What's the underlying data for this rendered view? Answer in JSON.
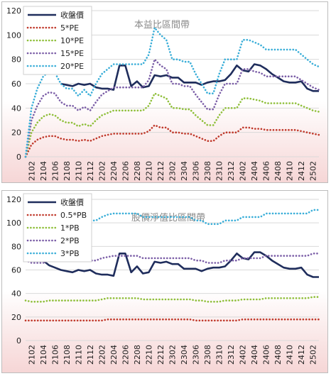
{
  "chart_data": [
    {
      "type": "line",
      "title": "本益比區間帶",
      "ylim": [
        0,
        120
      ],
      "yticks": [
        0,
        20,
        40,
        60,
        80,
        100,
        120
      ],
      "grid": true,
      "legend": "top-left",
      "x": [
        "2101",
        "2102",
        "2103",
        "2104",
        "2105",
        "2106",
        "2107",
        "2108",
        "2109",
        "2110",
        "2111",
        "2112",
        "2201",
        "2202",
        "2203",
        "2204",
        "2205",
        "2206",
        "2207",
        "2208",
        "2209",
        "2210",
        "2211",
        "2212",
        "2301",
        "2302",
        "2303",
        "2304",
        "2305",
        "2306",
        "2307",
        "2308",
        "2309",
        "2310",
        "2311",
        "2312",
        "2401",
        "2402",
        "2403",
        "2404",
        "2405",
        "2406",
        "2407",
        "2408",
        "2409",
        "2410",
        "2411",
        "2412",
        "2501",
        "2502",
        "2503"
      ],
      "xtick_labels": [
        "2102",
        "2104",
        "2106",
        "2108",
        "2110",
        "2112",
        "2202",
        "2204",
        "2206",
        "2208",
        "2210",
        "2212",
        "2302",
        "2304",
        "2306",
        "2308",
        "2310",
        "2312",
        "2402",
        "2404",
        "2406",
        "2408",
        "2410",
        "2412",
        "2502"
      ],
      "series": [
        {
          "name": "收盤價",
          "color": "#1f2d5c",
          "style": "solid",
          "values": [
            null,
            null,
            null,
            null,
            null,
            null,
            60,
            59,
            58,
            60,
            59,
            60,
            57,
            56,
            56,
            55,
            75,
            75,
            58,
            62,
            57,
            58,
            67,
            66,
            67,
            65,
            65,
            61,
            61,
            61,
            59,
            61,
            62,
            62,
            63,
            68,
            75,
            71,
            70,
            76,
            75,
            72,
            68,
            65,
            62,
            61,
            61,
            62,
            56,
            54,
            54
          ]
        },
        {
          "name": "5*PE",
          "color": "#c0392b",
          "style": "dotted",
          "values": [
            0,
            10,
            14,
            16,
            17,
            17,
            15,
            14,
            14,
            13,
            14,
            13,
            15,
            17,
            18,
            19,
            19,
            19,
            19,
            19,
            19,
            21,
            26,
            24,
            24,
            20,
            20,
            19,
            19,
            17,
            15,
            13,
            13,
            17,
            20,
            20,
            20,
            24,
            24,
            23,
            23,
            22,
            22,
            22,
            22,
            22,
            22,
            21,
            20,
            19,
            18
          ]
        },
        {
          "name": "10*PE",
          "color": "#8fbf3a",
          "style": "dotted",
          "values": [
            0,
            20,
            28,
            33,
            35,
            34,
            30,
            28,
            28,
            25,
            27,
            25,
            30,
            34,
            36,
            38,
            38,
            38,
            38,
            38,
            38,
            42,
            52,
            50,
            48,
            40,
            40,
            39,
            39,
            34,
            30,
            26,
            26,
            34,
            40,
            40,
            40,
            48,
            48,
            47,
            46,
            44,
            44,
            44,
            44,
            44,
            44,
            42,
            40,
            38,
            37
          ]
        },
        {
          "name": "15*PE",
          "color": "#7b5ea7",
          "style": "dotted",
          "values": [
            0,
            30,
            42,
            50,
            53,
            52,
            45,
            42,
            42,
            38,
            41,
            38,
            45,
            51,
            54,
            57,
            57,
            57,
            57,
            57,
            57,
            63,
            80,
            75,
            72,
            60,
            60,
            58,
            58,
            51,
            45,
            39,
            39,
            51,
            60,
            60,
            60,
            72,
            72,
            70,
            69,
            66,
            66,
            66,
            66,
            66,
            66,
            63,
            60,
            57,
            55
          ]
        },
        {
          "name": "20*PE",
          "color": "#3aaed8",
          "style": "dotted",
          "values": [
            0,
            40,
            56,
            66,
            70,
            69,
            60,
            56,
            56,
            50,
            55,
            50,
            60,
            68,
            72,
            76,
            76,
            76,
            76,
            76,
            76,
            84,
            106,
            100,
            96,
            80,
            80,
            78,
            78,
            68,
            60,
            52,
            52,
            68,
            80,
            80,
            80,
            96,
            96,
            94,
            92,
            88,
            88,
            88,
            88,
            88,
            88,
            84,
            80,
            76,
            74
          ]
        }
      ]
    },
    {
      "type": "line",
      "title": "股價淨值比區間帶",
      "ylim": [
        0,
        120
      ],
      "yticks": [
        0,
        20,
        40,
        60,
        80,
        100,
        120
      ],
      "grid": true,
      "legend": "top-left",
      "x": [
        "2101",
        "2102",
        "2103",
        "2104",
        "2105",
        "2106",
        "2107",
        "2108",
        "2109",
        "2110",
        "2111",
        "2112",
        "2201",
        "2202",
        "2203",
        "2204",
        "2205",
        "2206",
        "2207",
        "2208",
        "2209",
        "2210",
        "2211",
        "2212",
        "2301",
        "2302",
        "2303",
        "2304",
        "2305",
        "2306",
        "2307",
        "2308",
        "2309",
        "2310",
        "2311",
        "2312",
        "2401",
        "2402",
        "2403",
        "2404",
        "2405",
        "2406",
        "2407",
        "2408",
        "2409",
        "2410",
        "2411",
        "2412",
        "2501",
        "2502",
        "2503"
      ],
      "xtick_labels": [
        "2102",
        "2104",
        "2106",
        "2108",
        "2110",
        "2112",
        "2202",
        "2204",
        "2206",
        "2208",
        "2210",
        "2212",
        "2302",
        "2304",
        "2306",
        "2308",
        "2310",
        "2312",
        "2402",
        "2404",
        "2406",
        "2408",
        "2410",
        "2412",
        "2502"
      ],
      "series": [
        {
          "name": "收盤價",
          "color": "#1f2d5c",
          "style": "solid",
          "values": [
            72,
            72,
            70,
            68,
            64,
            62,
            60,
            59,
            58,
            60,
            59,
            60,
            57,
            56,
            56,
            55,
            74,
            74,
            58,
            63,
            57,
            58,
            67,
            66,
            67,
            65,
            65,
            61,
            61,
            61,
            59,
            61,
            62,
            62,
            63,
            68,
            74,
            70,
            69,
            75,
            75,
            72,
            68,
            65,
            62,
            61,
            61,
            62,
            56,
            54,
            54
          ]
        },
        {
          "name": "0.5*PB",
          "color": "#c0392b",
          "style": "dotted",
          "values": [
            17,
            17,
            17,
            17,
            17,
            17,
            17,
            17,
            17,
            17,
            17,
            17,
            17,
            17,
            18,
            18,
            18,
            18,
            18,
            18,
            18,
            18,
            18,
            18,
            18,
            18,
            18,
            18,
            18,
            17,
            17,
            17,
            17,
            17,
            17,
            17,
            17,
            18,
            18,
            18,
            18,
            18,
            18,
            18,
            18,
            18,
            18,
            18,
            18,
            18,
            18
          ]
        },
        {
          "name": "1*PB",
          "color": "#8fbf3a",
          "style": "dotted",
          "values": [
            34,
            33,
            33,
            33,
            34,
            34,
            34,
            34,
            34,
            34,
            34,
            34,
            34,
            35,
            36,
            36,
            36,
            36,
            36,
            36,
            35,
            35,
            35,
            35,
            35,
            35,
            35,
            35,
            35,
            34,
            34,
            33,
            33,
            33,
            34,
            34,
            34,
            35,
            35,
            35,
            35,
            36,
            36,
            36,
            36,
            36,
            36,
            36,
            36,
            37,
            37
          ]
        },
        {
          "name": "2*PB",
          "color": "#7b5ea7",
          "style": "dotted",
          "values": [
            68,
            66,
            66,
            66,
            68,
            68,
            68,
            68,
            68,
            68,
            68,
            68,
            68,
            70,
            71,
            72,
            72,
            72,
            72,
            72,
            70,
            70,
            70,
            70,
            70,
            70,
            70,
            70,
            70,
            68,
            68,
            66,
            66,
            66,
            68,
            68,
            68,
            70,
            70,
            70,
            70,
            72,
            72,
            72,
            72,
            72,
            72,
            72,
            72,
            74,
            74
          ]
        },
        {
          "name": "3*PB",
          "color": "#3aaed8",
          "style": "dotted",
          "values": [
            102,
            99,
            99,
            99,
            102,
            102,
            102,
            102,
            102,
            102,
            102,
            102,
            102,
            105,
            107,
            108,
            108,
            108,
            108,
            108,
            105,
            105,
            105,
            105,
            105,
            105,
            105,
            105,
            105,
            102,
            102,
            99,
            99,
            99,
            102,
            102,
            102,
            105,
            105,
            105,
            105,
            108,
            108,
            108,
            108,
            108,
            108,
            108,
            108,
            111,
            111
          ]
        }
      ]
    }
  ]
}
